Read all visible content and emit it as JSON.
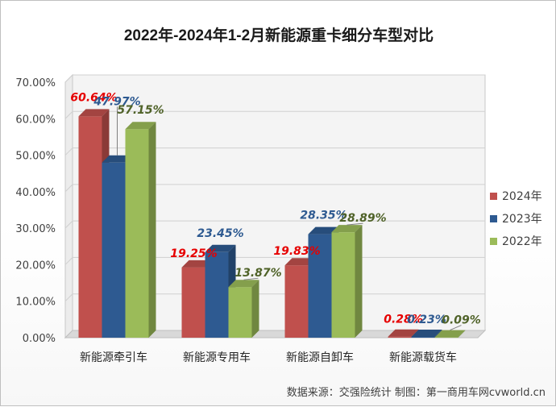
{
  "source_note": "数据来源：交强险统计  制图：第一商用车网cvworld.cn",
  "chart_data": {
    "type": "bar",
    "title": "2022年-2024年1-2月新能源重卡细分车型对比",
    "categories": [
      "新能源牵引车",
      "新能源专用车",
      "新能源自卸车",
      "新能源载货车"
    ],
    "series": [
      {
        "name": "2024年",
        "color": "#c0504d",
        "label_color": "#e60000",
        "values": [
          60.64,
          19.25,
          19.83,
          0.28
        ],
        "labels": [
          "60.64%",
          "19.25%",
          "19.83%",
          "0.28%"
        ]
      },
      {
        "name": "2023年",
        "color": "#2e5a91",
        "label_color": "#2e5a91",
        "values": [
          47.97,
          23.45,
          28.35,
          0.23
        ],
        "labels": [
          "47.97%",
          "23.45%",
          "28.35%",
          "0.23%"
        ]
      },
      {
        "name": "2022年",
        "color": "#9bbb59",
        "label_color": "#4f6228",
        "values": [
          57.15,
          13.87,
          28.89,
          0.09
        ],
        "labels": [
          "57.15%",
          "13.87%",
          "28.89%",
          "0.09%"
        ]
      }
    ],
    "yticks": [
      "0.00%",
      "10.00%",
      "20.00%",
      "30.00%",
      "40.00%",
      "50.00%",
      "60.00%",
      "70.00%"
    ],
    "ylim": [
      0,
      70
    ],
    "grid": true,
    "legend_position": "right"
  }
}
